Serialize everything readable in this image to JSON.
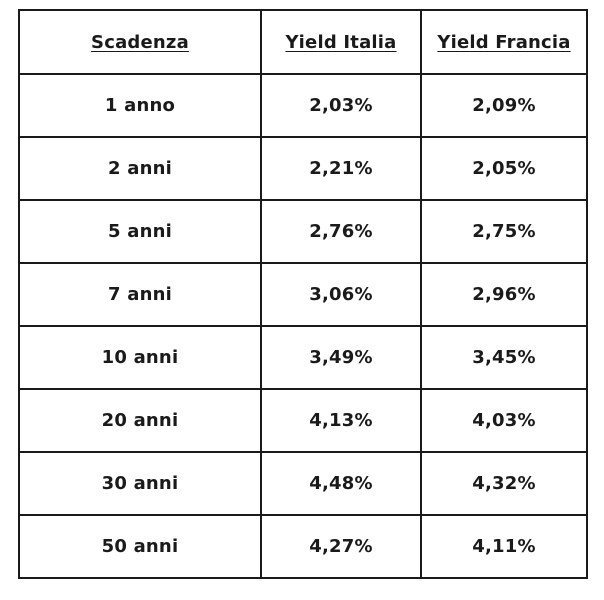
{
  "table": {
    "headers": {
      "scadenza": "Scadenza",
      "italia": "Yield Italia",
      "francia": "Yield Francia"
    },
    "rows": [
      {
        "scadenza": "1 anno",
        "italia": "2,03%",
        "francia": "2,09%"
      },
      {
        "scadenza": "2 anni",
        "italia": "2,21%",
        "francia": "2,05%"
      },
      {
        "scadenza": "5 anni",
        "italia": "2,76%",
        "francia": "2,75%"
      },
      {
        "scadenza": "7 anni",
        "italia": "3,06%",
        "francia": "2,96%"
      },
      {
        "scadenza": "10 anni",
        "italia": "3,49%",
        "francia": "3,45%"
      },
      {
        "scadenza": "20 anni",
        "italia": "4,13%",
        "francia": "4,03%"
      },
      {
        "scadenza": "30 anni",
        "italia": "4,48%",
        "francia": "4,32%"
      },
      {
        "scadenza": "50 anni",
        "italia": "4,27%",
        "francia": "4,11%"
      }
    ]
  },
  "colors": {
    "border": "#1a1a1a",
    "text": "#1a1a1a",
    "background": "#ffffff"
  },
  "chart_data": {
    "type": "table",
    "title": "",
    "columns": [
      "Scadenza",
      "Yield Italia",
      "Yield Francia"
    ],
    "categories": [
      "1 anno",
      "2 anni",
      "5 anni",
      "7 anni",
      "10 anni",
      "20 anni",
      "30 anni",
      "50 anni"
    ],
    "series": [
      {
        "name": "Yield Italia",
        "values": [
          2.03,
          2.21,
          2.76,
          3.06,
          3.49,
          4.13,
          4.48,
          4.27
        ],
        "unit": "%"
      },
      {
        "name": "Yield Francia",
        "values": [
          2.09,
          2.05,
          2.75,
          2.96,
          3.45,
          4.03,
          4.32,
          4.11
        ],
        "unit": "%"
      }
    ],
    "decimal_separator": ",",
    "layout": "bordered grid table, centered bold text, underlined bold headers"
  }
}
